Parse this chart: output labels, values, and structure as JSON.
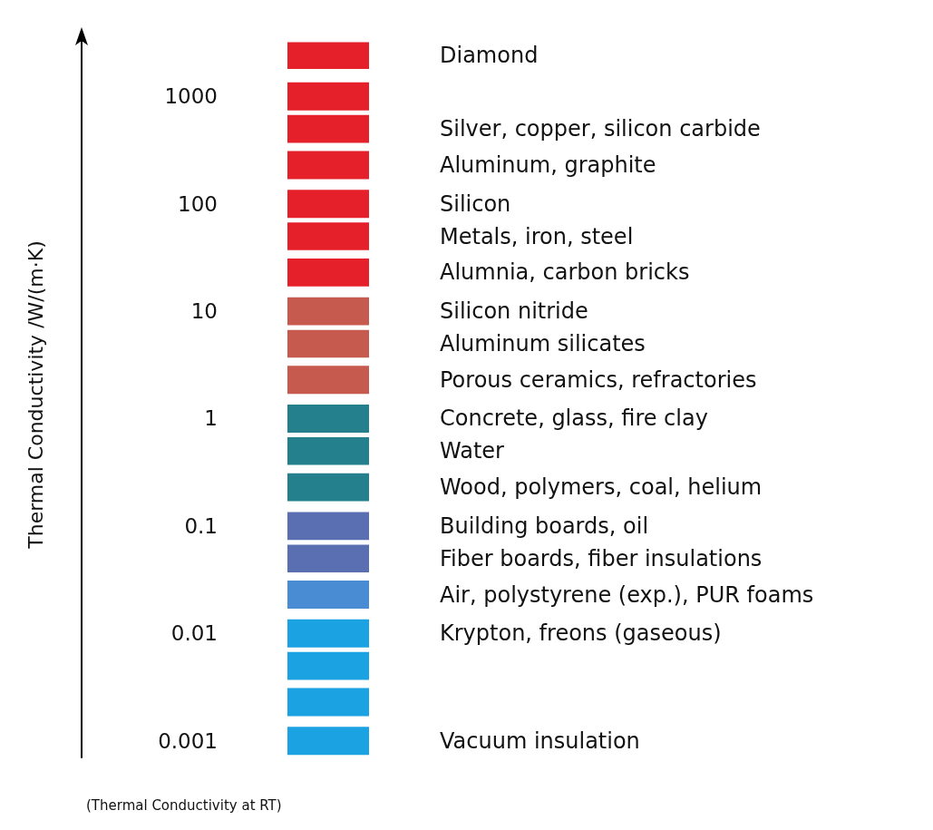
{
  "chart_data": {
    "type": "bar",
    "ylabel": "Thermal Conductivity /W/(m·K)",
    "annotations": [
      "(Thermal Conductivity at RT)"
    ],
    "categories": [
      null
    ],
    "log": true,
    "ylim": [
      0.0007,
      4000
    ],
    "yticks": [
      0.001,
      0.01,
      0.1,
      1,
      10,
      100,
      1000
    ],
    "legend": false,
    "grid": false,
    "tick_labels": "y",
    "series": [
      {
        "name": "Diamond",
        "color": "#e5202b",
        "base": [
          1800
        ],
        "values": [
          1400
        ]
      },
      {
        "color": "#e5202b",
        "base": [
          740
        ],
        "values": [
          610
        ]
      },
      {
        "name": "Silver, copper, silicon carbide",
        "color": "#e5202b",
        "base": [
          370
        ],
        "values": [
          300
        ]
      },
      {
        "name": "Aluminum, graphite",
        "color": "#e5202b",
        "base": [
          170
        ],
        "values": [
          140
        ]
      },
      {
        "name": "Silicon",
        "color": "#e5202b",
        "base": [
          74
        ],
        "values": [
          61
        ]
      },
      {
        "name": "Metals, iron, steel",
        "color": "#e5202b",
        "base": [
          37
        ],
        "values": [
          30
        ]
      },
      {
        "name": "Alumnia, carbon bricks",
        "color": "#e5202b",
        "base": [
          17
        ],
        "values": [
          14
        ]
      },
      {
        "name": "Silicon nitride",
        "color": "#c65a4e",
        "base": [
          7.4
        ],
        "values": [
          6.1
        ]
      },
      {
        "name": "Aluminum silicates",
        "color": "#c65a4e",
        "base": [
          3.7
        ],
        "values": [
          3
        ]
      },
      {
        "name": "Porous ceramics, refractories",
        "color": "#c65a4e",
        "base": [
          1.7
        ],
        "values": [
          1.4
        ]
      },
      {
        "name": "Concrete, glass, fire clay",
        "color": "#23808c",
        "base": [
          0.74
        ],
        "values": [
          0.61
        ]
      },
      {
        "name": "Water",
        "color": "#23808c",
        "base": [
          0.37
        ],
        "values": [
          0.3
        ]
      },
      {
        "name": "Wood, polymers, coal, helium",
        "color": "#23808c",
        "base": [
          0.17
        ],
        "values": [
          0.14
        ]
      },
      {
        "name": "Building boards, oil",
        "color": "#5a6fb2",
        "base": [
          0.074
        ],
        "values": [
          0.061
        ]
      },
      {
        "name": "Fiber boards, fiber insulations",
        "color": "#5a6fb2",
        "base": [
          0.037
        ],
        "values": [
          0.03
        ]
      },
      {
        "name": "Air, polystyrene (exp.), PUR foams",
        "color": "#4a8cd4",
        "base": [
          0.017
        ],
        "values": [
          0.014
        ]
      },
      {
        "name": "Krypton, freons (gaseous)",
        "color": "#1ba2e2",
        "base": [
          0.0074
        ],
        "values": [
          0.0061
        ]
      },
      {
        "color": "#1ba2e2",
        "base": [
          0.0037
        ],
        "values": [
          0.003
        ]
      },
      {
        "color": "#1ba2e2",
        "base": [
          0.0017
        ],
        "values": [
          0.0014
        ]
      },
      {
        "name": "Vacuum insulation",
        "color": "#1ba2e2",
        "base": [
          0.00074
        ],
        "values": [
          0.00061
        ]
      }
    ]
  }
}
